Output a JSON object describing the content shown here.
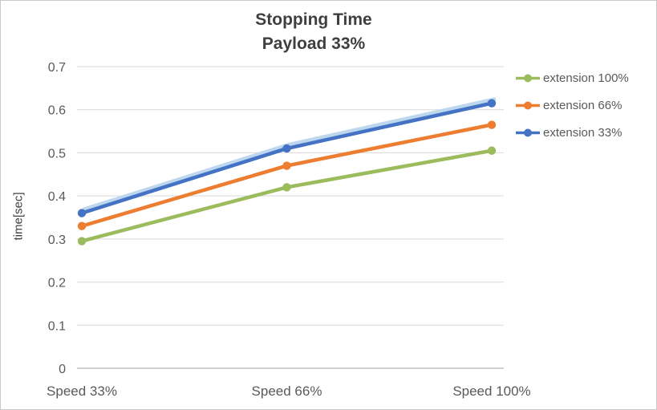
{
  "chart_data": {
    "type": "line",
    "title": "Stopping Time",
    "subtitle": "Payload 33%",
    "ylabel": "time[sec]",
    "xlabel": "",
    "categories": [
      "Speed 33%",
      "Speed 66%",
      "Speed 100%"
    ],
    "series": [
      {
        "name": "extension 100%",
        "color": "#9CBB5C",
        "values": [
          0.295,
          0.42,
          0.505
        ]
      },
      {
        "name": "extension 66%",
        "color": "#ED7D31",
        "values": [
          0.33,
          0.47,
          0.565
        ]
      },
      {
        "name": "extension 33%",
        "color": "#4472C4",
        "values": [
          0.36,
          0.51,
          0.615
        ],
        "glow_color": "#BDD7EE"
      }
    ],
    "ylim": [
      0,
      0.7
    ],
    "ytick_step": 0.1,
    "grid": true,
    "legend_position": "right"
  },
  "colors": {
    "grid": "#D9D9D9",
    "axis": "#BFBFBF",
    "tick_text": "#595959",
    "title_text": "#3F3F3F"
  }
}
